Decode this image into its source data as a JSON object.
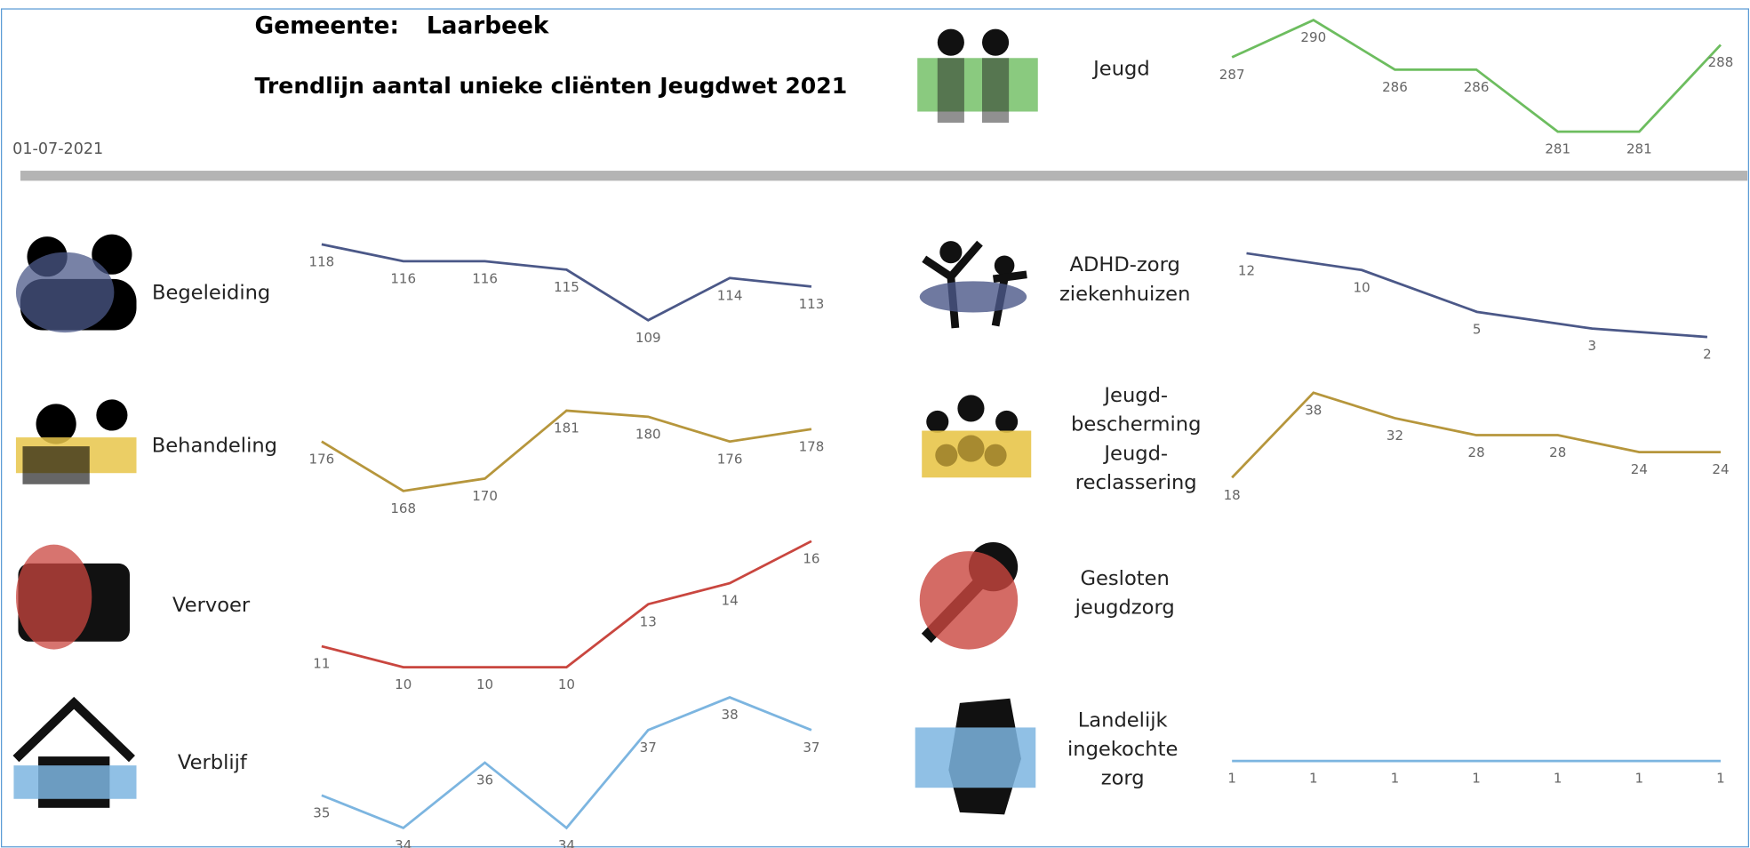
{
  "header": {
    "label": "Gemeente:",
    "value": "Laarbeek",
    "title": "Trendlijn aantal unieke cliënten Jeugdwet 2021",
    "date": "01-07-2021"
  },
  "chart_data": [
    {
      "type": "line",
      "title": [
        "Jeugd"
      ],
      "color": "#6dbd5f",
      "values": [
        287,
        290,
        286,
        286,
        281,
        281,
        288
      ]
    },
    {
      "type": "line",
      "title": [
        "Begeleiding"
      ],
      "color": "#4b5888",
      "values": [
        118,
        116,
        116,
        115,
        109,
        114,
        113
      ]
    },
    {
      "type": "line",
      "title": [
        "Behandeling"
      ],
      "color": "#b6963c",
      "values": [
        176,
        168,
        170,
        181,
        180,
        176,
        178
      ]
    },
    {
      "type": "line",
      "title": [
        "Vervoer"
      ],
      "color": "#c9463f",
      "values": [
        11,
        10,
        10,
        10,
        13,
        14,
        16
      ]
    },
    {
      "type": "line",
      "title": [
        "Verblijf"
      ],
      "color": "#7cb5e0",
      "values": [
        35,
        34,
        36,
        34,
        37,
        38,
        37
      ]
    },
    {
      "type": "line",
      "title": [
        "ADHD-zorg",
        "ziekenhuizen"
      ],
      "color": "#4b5888",
      "values": [
        12,
        10,
        5,
        3,
        2
      ]
    },
    {
      "type": "line",
      "title": [
        "Jeugd-",
        "bescherming",
        "Jeugd-",
        "reclassering"
      ],
      "color": "#b6963c",
      "values": [
        18,
        38,
        32,
        28,
        28,
        24,
        24
      ]
    },
    {
      "type": "line",
      "title": [
        "Gesloten",
        "jeugdzorg"
      ],
      "color": "#c9463f",
      "values": []
    },
    {
      "type": "line",
      "title": [
        "Landelijk",
        "ingekochte",
        "zorg"
      ],
      "color": "#7cb5e0",
      "values": [
        1,
        1,
        1,
        1,
        1,
        1,
        1
      ]
    }
  ]
}
